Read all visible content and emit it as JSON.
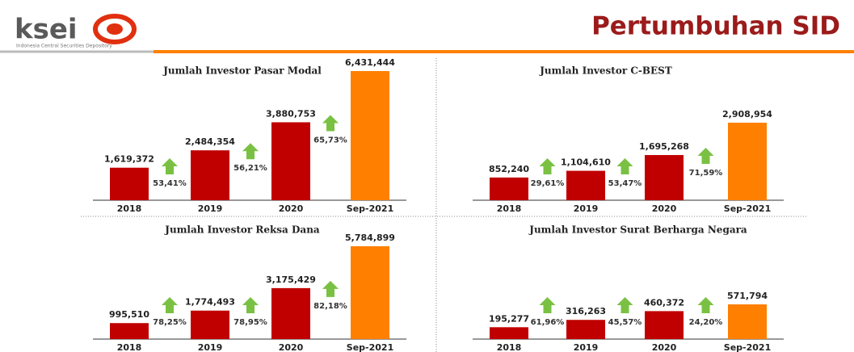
{
  "header": {
    "logo": "ksei",
    "logo_subtitle": "Indonesia Central Securities Depository",
    "title": "Pertumbuhan SID"
  },
  "chart_data": [
    {
      "type": "bar",
      "title": "Jumlah Investor Pasar Modal",
      "categories": [
        "2018",
        "2019",
        "2020",
        "Sep-2021"
      ],
      "values": [
        1619372,
        2484354,
        3880753,
        6431444
      ],
      "value_labels": [
        "1,619,372",
        "2,484,354",
        "3,880,753",
        "6,431,444"
      ],
      "colors": [
        "#c00000",
        "#c00000",
        "#c00000",
        "#ff8000"
      ],
      "annotations": [
        "53,41%",
        "56,21%",
        "65,73%"
      ]
    },
    {
      "type": "bar",
      "title": "Jumlah Investor C-BEST",
      "categories": [
        "2018",
        "2019",
        "2020",
        "Sep-2021"
      ],
      "values": [
        852240,
        1104610,
        1695268,
        2908954
      ],
      "value_labels": [
        "852,240",
        "1,104,610",
        "1,695,268",
        "2,908,954"
      ],
      "colors": [
        "#c00000",
        "#c00000",
        "#c00000",
        "#ff8000"
      ],
      "annotations": [
        "29,61%",
        "53,47%",
        "71,59%"
      ]
    },
    {
      "type": "bar",
      "title": "Jumlah Investor Reksa Dana",
      "categories": [
        "2018",
        "2019",
        "2020",
        "Sep-2021"
      ],
      "values": [
        995510,
        1774493,
        3175429,
        5784899
      ],
      "value_labels": [
        "995,510",
        "1,774,493",
        "3,175,429",
        "5,784,899"
      ],
      "colors": [
        "#c00000",
        "#c00000",
        "#c00000",
        "#ff8000"
      ],
      "annotations": [
        "78,25%",
        "78,95%",
        "82,18%"
      ]
    },
    {
      "type": "bar",
      "title": "Jumlah Investor Surat Berharga Negara",
      "categories": [
        "2018",
        "2019",
        "2020",
        "Sep-2021"
      ],
      "values": [
        195277,
        316263,
        460372,
        571794
      ],
      "value_labels": [
        "195,277",
        "316,263",
        "460,372",
        "571,794"
      ],
      "colors": [
        "#c00000",
        "#c00000",
        "#c00000",
        "#ff8000"
      ],
      "annotations": [
        "61,96%",
        "45,57%",
        "24,20%"
      ]
    }
  ]
}
